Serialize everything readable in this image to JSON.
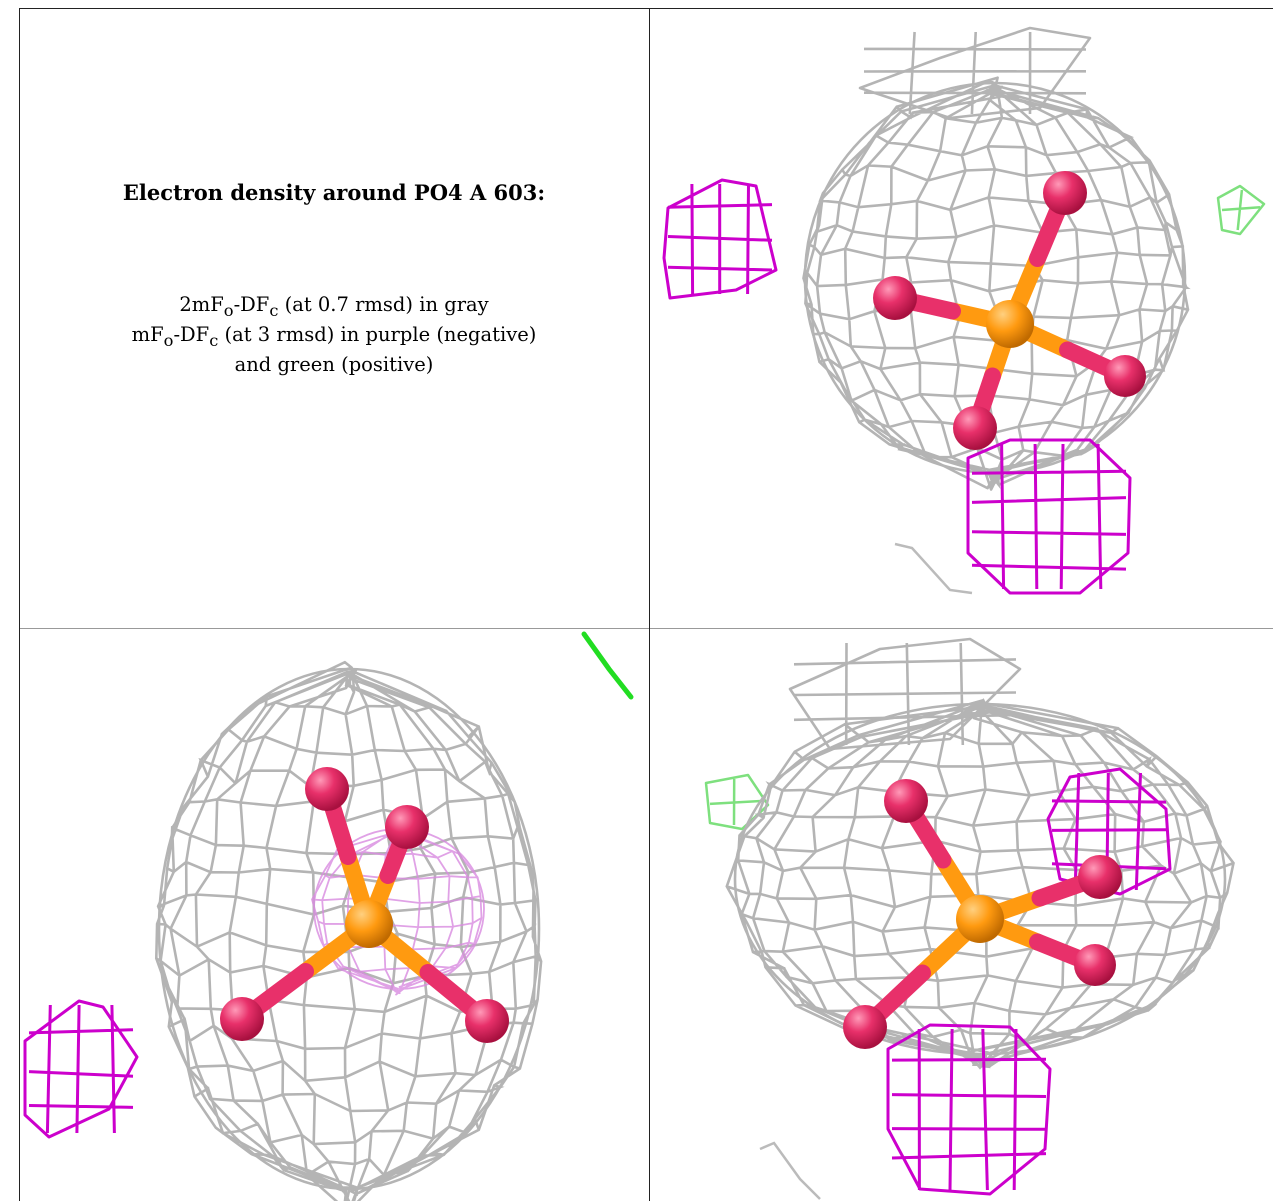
{
  "title": "Electron density around PO4 A 603:",
  "legend": [
    {
      "prefix": "2mF",
      "sub1": "o",
      "mid": "-DF",
      "sub2": "c",
      "suffix": " (at 0.7 rmsd) in gray"
    },
    {
      "prefix": "mF",
      "sub1": "o",
      "mid": "-DF",
      "sub2": "c",
      "suffix": " (at 3 rmsd) in purple (negative)"
    },
    {
      "prefix": "",
      "sub1": "",
      "mid": "",
      "sub2": "",
      "suffix": "and green (positive)"
    }
  ],
  "colors": {
    "mesh_2fofc": "#b4b4b4",
    "mesh_negative": "#cc00cc",
    "mesh_positive": "#7ee07e",
    "oxygen": "#e8306a",
    "phosphorus": "#ff9a10",
    "border": "#222222"
  }
}
